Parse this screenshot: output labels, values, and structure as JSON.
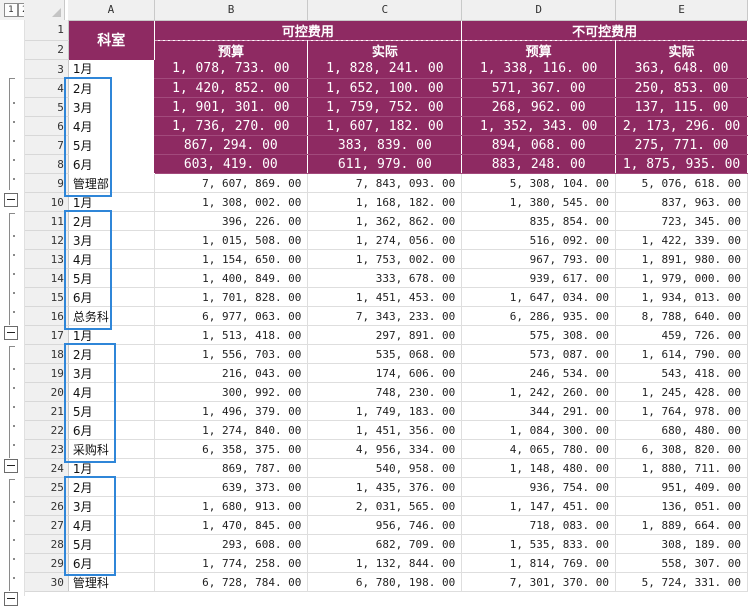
{
  "outline_levels": [
    "1",
    "2"
  ],
  "columns": [
    "A",
    "B",
    "C",
    "D",
    "E"
  ],
  "header": {
    "keshi": "科室",
    "controllable": "可控费用",
    "uncontrollable": "不可控费用",
    "budget": "预算",
    "actual": "实际"
  },
  "rows": [
    {
      "n": "3",
      "a": "1月",
      "b": "1, 078, 733. 00",
      "c": "1, 828, 241. 00",
      "d": "1, 338, 116. 00",
      "e": "363, 648. 00"
    },
    {
      "n": "4",
      "a": "2月",
      "b": "1, 420, 852. 00",
      "c": "1, 652, 100. 00",
      "d": "571, 367. 00",
      "e": "250, 853. 00"
    },
    {
      "n": "5",
      "a": "3月",
      "b": "1, 901, 301. 00",
      "c": "1, 759, 752. 00",
      "d": "268, 962. 00",
      "e": "137, 115. 00"
    },
    {
      "n": "6",
      "a": "4月",
      "b": "1, 736, 270. 00",
      "c": "1, 607, 182. 00",
      "d": "1, 352, 343. 00",
      "e": "2, 173, 296. 00"
    },
    {
      "n": "7",
      "a": "5月",
      "b": "867, 294. 00",
      "c": "383, 839. 00",
      "d": "894, 068. 00",
      "e": "275, 771. 00"
    },
    {
      "n": "8",
      "a": "6月",
      "b": "603, 419. 00",
      "c": "611, 979. 00",
      "d": "883, 248. 00",
      "e": "1, 875, 935. 00"
    },
    {
      "n": "9",
      "a": "管理部",
      "b": "7, 607, 869. 00",
      "c": "7, 843, 093. 00",
      "d": "5, 308, 104. 00",
      "e": "5, 076, 618. 00"
    },
    {
      "n": "10",
      "a": "1月",
      "b": "1, 308, 002. 00",
      "c": "1, 168, 182. 00",
      "d": "1, 380, 545. 00",
      "e": "837, 963. 00"
    },
    {
      "n": "11",
      "a": "2月",
      "b": "396, 226. 00",
      "c": "1, 362, 862. 00",
      "d": "835, 854. 00",
      "e": "723, 345. 00"
    },
    {
      "n": "12",
      "a": "3月",
      "b": "1, 015, 508. 00",
      "c": "1, 274, 056. 00",
      "d": "516, 092. 00",
      "e": "1, 422, 339. 00"
    },
    {
      "n": "13",
      "a": "4月",
      "b": "1, 154, 650. 00",
      "c": "1, 753, 002. 00",
      "d": "967, 793. 00",
      "e": "1, 891, 980. 00"
    },
    {
      "n": "14",
      "a": "5月",
      "b": "1, 400, 849. 00",
      "c": "333, 678. 00",
      "d": "939, 617. 00",
      "e": "1, 979, 000. 00"
    },
    {
      "n": "15",
      "a": "6月",
      "b": "1, 701, 828. 00",
      "c": "1, 451, 453. 00",
      "d": "1, 647, 034. 00",
      "e": "1, 934, 013. 00"
    },
    {
      "n": "16",
      "a": "总务科",
      "b": "6, 977, 063. 00",
      "c": "7, 343, 233. 00",
      "d": "6, 286, 935. 00",
      "e": "8, 788, 640. 00"
    },
    {
      "n": "17",
      "a": "1月",
      "b": "1, 513, 418. 00",
      "c": "297, 891. 00",
      "d": "575, 308. 00",
      "e": "459, 726. 00"
    },
    {
      "n": "18",
      "a": "2月",
      "b": "1, 556, 703. 00",
      "c": "535, 068. 00",
      "d": "573, 087. 00",
      "e": "1, 614, 790. 00"
    },
    {
      "n": "19",
      "a": "3月",
      "b": "216, 043. 00",
      "c": "174, 606. 00",
      "d": "246, 534. 00",
      "e": "543, 418. 00"
    },
    {
      "n": "20",
      "a": "4月",
      "b": "300, 992. 00",
      "c": "748, 230. 00",
      "d": "1, 242, 260. 00",
      "e": "1, 245, 428. 00"
    },
    {
      "n": "21",
      "a": "5月",
      "b": "1, 496, 379. 00",
      "c": "1, 749, 183. 00",
      "d": "344, 291. 00",
      "e": "1, 764, 978. 00"
    },
    {
      "n": "22",
      "a": "6月",
      "b": "1, 274, 840. 00",
      "c": "1, 451, 356. 00",
      "d": "1, 084, 300. 00",
      "e": "680, 480. 00"
    },
    {
      "n": "23",
      "a": "采购科",
      "b": "6, 358, 375. 00",
      "c": "4, 956, 334. 00",
      "d": "4, 065, 780. 00",
      "e": "6, 308, 820. 00"
    },
    {
      "n": "24",
      "a": "1月",
      "b": "869, 787. 00",
      "c": "540, 958. 00",
      "d": "1, 148, 480. 00",
      "e": "1, 880, 711. 00"
    },
    {
      "n": "25",
      "a": "2月",
      "b": "639, 373. 00",
      "c": "1, 435, 376. 00",
      "d": "936, 754. 00",
      "e": "951, 409. 00"
    },
    {
      "n": "26",
      "a": "3月",
      "b": "1, 680, 913. 00",
      "c": "2, 031, 565. 00",
      "d": "1, 147, 451. 00",
      "e": "136, 051. 00"
    },
    {
      "n": "27",
      "a": "4月",
      "b": "1, 470, 845. 00",
      "c": "956, 746. 00",
      "d": "718, 083. 00",
      "e": "1, 889, 664. 00"
    },
    {
      "n": "28",
      "a": "5月",
      "b": "293, 608. 00",
      "c": "682, 709. 00",
      "d": "1, 535, 833. 00",
      "e": "308, 189. 00"
    },
    {
      "n": "29",
      "a": "6月",
      "b": "1, 774, 258. 00",
      "c": "1, 132, 844. 00",
      "d": "1, 814, 769. 00",
      "e": "558, 307. 00"
    },
    {
      "n": "30",
      "a": "管理科",
      "b": "6, 728, 784. 00",
      "c": "6, 780, 198. 00",
      "d": "7, 301, 370. 00",
      "e": "5, 724, 331. 00"
    }
  ]
}
